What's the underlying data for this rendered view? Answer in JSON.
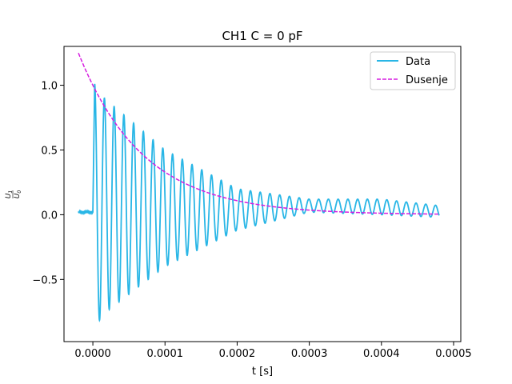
{
  "chart_data": {
    "type": "line",
    "title": "CH1 C = 0 pF",
    "xlabel": "t [s]",
    "ylabel_num": "U",
    "ylabel_num_sub": "1",
    "ylabel_den": "U",
    "ylabel_den_sub": "0",
    "xlim": [
      -4e-05,
      0.00051
    ],
    "ylim": [
      -0.98,
      1.3
    ],
    "x_ticks": [
      0.0,
      0.0001,
      0.0002,
      0.0003,
      0.0004,
      0.0005
    ],
    "x_tick_labels": [
      "0.0000",
      "0.0001",
      "0.0002",
      "0.0003",
      "0.0004",
      "0.0005"
    ],
    "y_ticks": [
      -0.5,
      0.0,
      0.5,
      1.0
    ],
    "y_tick_labels": [
      "−0.5",
      "0.0",
      "0.5",
      "1.0"
    ],
    "grid": false,
    "legend_position": "top-right",
    "series": [
      {
        "name": "Data",
        "style": "solid",
        "color": "#29b6e6",
        "pre_trigger": {
          "t_start": -2e-05,
          "t_end": 0.0,
          "level": 0.02
        },
        "oscillation": {
          "t_start": 2.5e-06,
          "t_end": 0.00048,
          "period": 1.35e-05,
          "peaks": [
            [
              2.5e-06,
              1.01
            ],
            [
              1.15e-05,
              -0.87
            ],
            [
              1.6e-05,
              0.9
            ],
            [
              2.2e-05,
              -0.76
            ],
            [
              0.0001,
              0.5
            ],
            [
              0.00011,
              -0.4
            ],
            [
              0.0002,
              0.2
            ],
            [
              0.00021,
              -0.12
            ],
            [
              0.0003,
              0.12
            ],
            [
              0.00031,
              0.02
            ],
            [
              0.0004,
              0.12
            ],
            [
              0.00041,
              0.0
            ],
            [
              0.00048,
              0.07
            ],
            [
              0.000475,
              -0.02
            ]
          ]
        }
      },
      {
        "name": "Dusenje",
        "style": "dashed",
        "color": "#d61ee0",
        "function": "exp_decay",
        "a": 1.0,
        "tau": 9e-05,
        "x_range": [
          -2e-05,
          0.00048
        ]
      }
    ]
  }
}
